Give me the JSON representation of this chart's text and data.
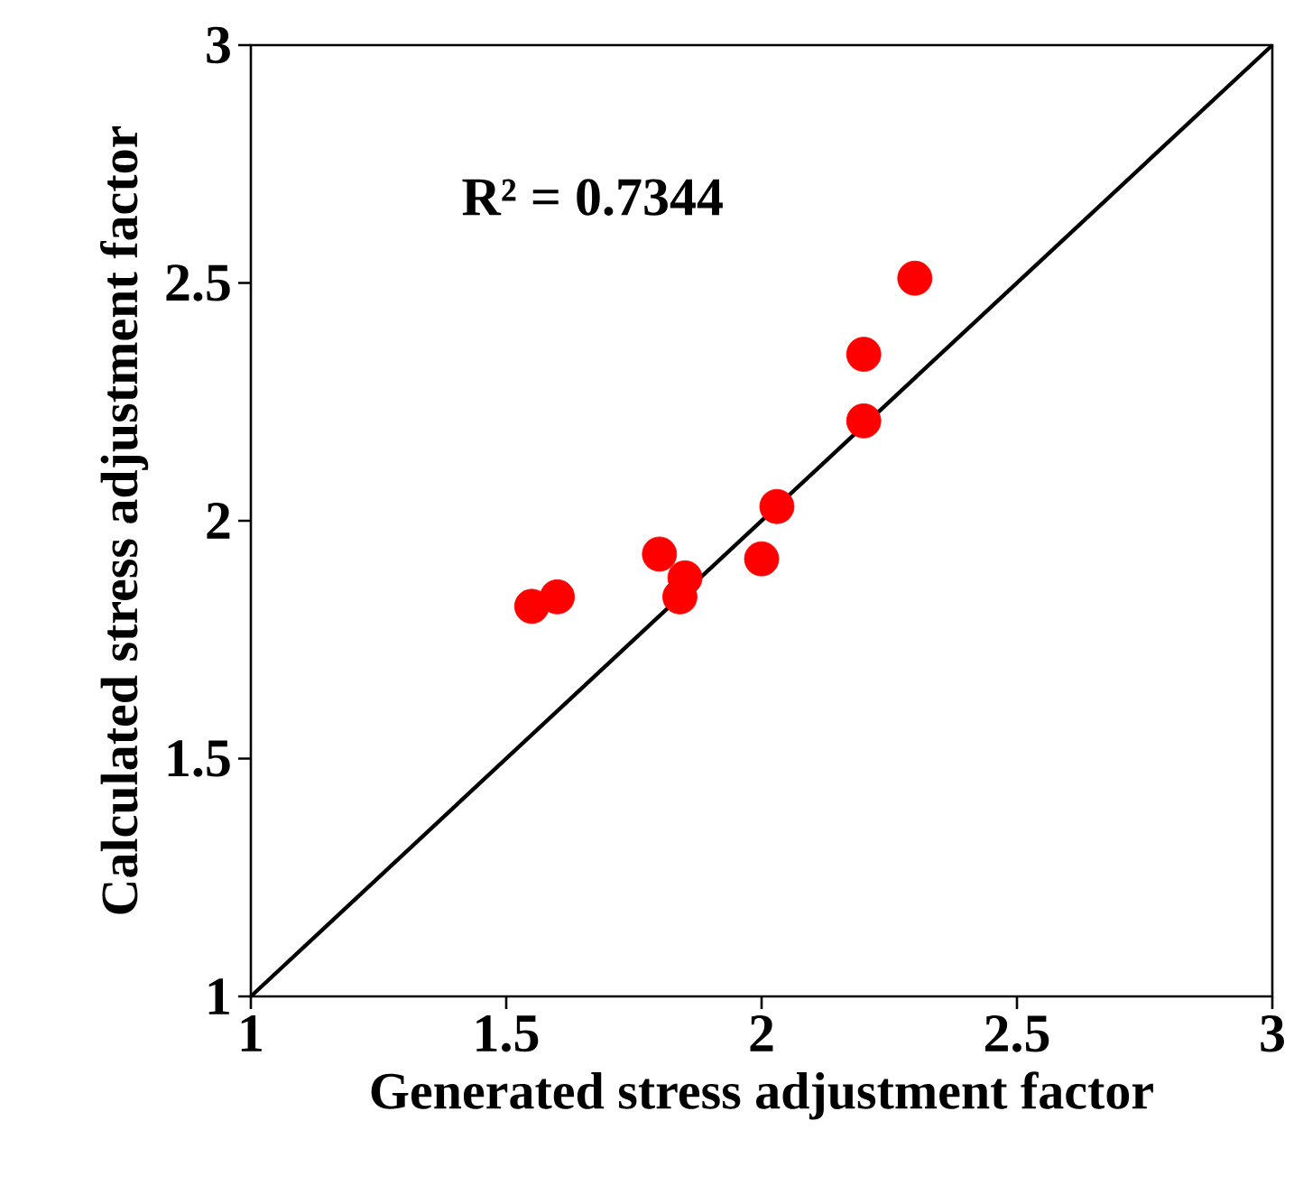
{
  "chart_data": {
    "type": "scatter",
    "xlabel": "Generated stress adjustment factor",
    "ylabel": "Calculated stress adjustment factor",
    "annotations": [
      "R² = 0.7344"
    ],
    "series": [
      {
        "color": "#ff0000",
        "marker": "circle",
        "x": [
          1.55,
          1.6,
          1.8,
          1.85,
          1.84,
          2.0,
          2.03,
          2.2,
          2.2,
          2.3
        ],
        "values": [
          1.82,
          1.84,
          1.93,
          1.88,
          1.84,
          1.92,
          2.03,
          2.21,
          2.35,
          2.51
        ]
      },
      {
        "type": "line",
        "color": "#000000",
        "marker": "none",
        "x": [
          1,
          3
        ],
        "values": [
          1,
          3
        ]
      }
    ],
    "xlim": [
      1,
      3
    ],
    "ylim": [
      1,
      3
    ],
    "xticks": [
      1,
      1.5,
      2,
      2.5,
      3
    ],
    "yticks": [
      1,
      1.5,
      2,
      2.5,
      3
    ],
    "grid": false
  }
}
